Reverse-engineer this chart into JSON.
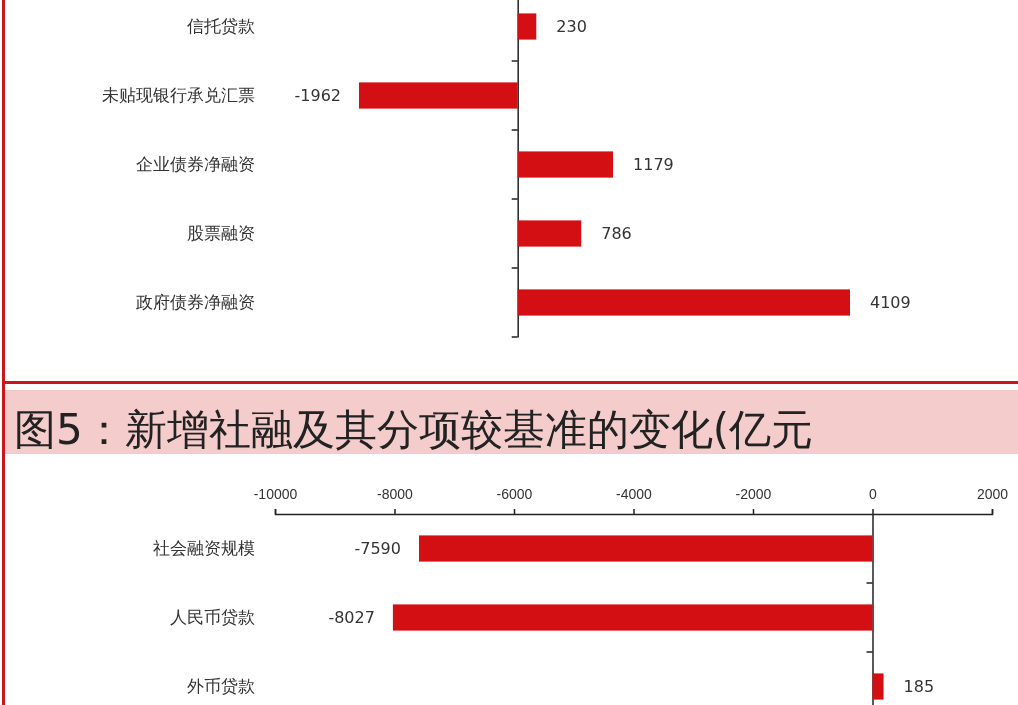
{
  "chart_data": [
    {
      "type": "bar",
      "orientation": "horizontal",
      "categories": [
        "信托贷款",
        "未贴现银行承兑汇票",
        "企业债券净融资",
        "股票融资",
        "政府债券净融资"
      ],
      "values": [
        230,
        -1962,
        1179,
        786,
        4109
      ],
      "color": "#d40f14",
      "data_labels": true,
      "tick_labels": "y"
    },
    {
      "type": "bar",
      "orientation": "horizontal",
      "title": "图5：新增社融及其分项较基准的变化(亿元",
      "categories": [
        "社会融资规模",
        "人民币贷款",
        "外币贷款"
      ],
      "values": [
        -7590,
        -8027,
        185
      ],
      "color": "#d40f14",
      "data_labels": true,
      "xlim": [
        -10000,
        2000
      ],
      "xticks": [
        -10000,
        -8000,
        -6000,
        -4000,
        -2000,
        0,
        2000
      ]
    }
  ]
}
